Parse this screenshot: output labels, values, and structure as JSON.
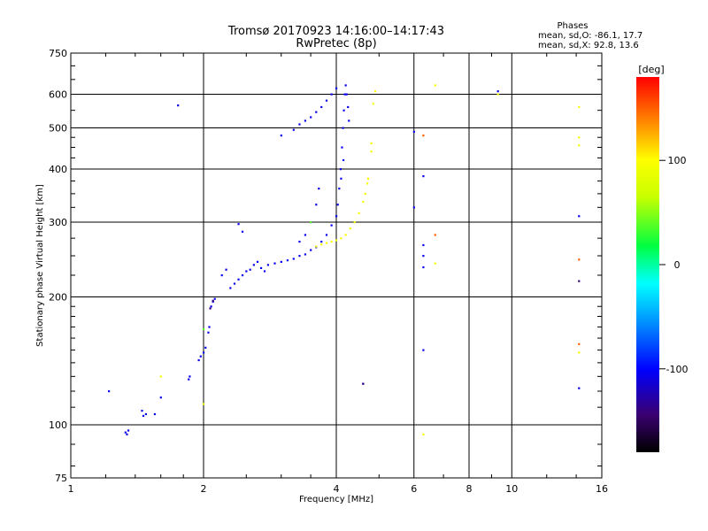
{
  "chart_data": {
    "type": "scatter",
    "title": "Tromsø 20170923 14:16:00–14:17:43",
    "subtitle": "RwPretec (8p)",
    "phase_info": {
      "title": "Phases",
      "line1": "mean, sd,O: -86.1, 17.7",
      "line2": "mean, sd,X:  92.8, 13.6"
    },
    "xlabel": "Frequency [MHz]",
    "ylabel": "Stationary phase Virtual Height [km]",
    "xscale": "log",
    "yscale": "log",
    "xlim": [
      1,
      16
    ],
    "ylim": [
      75,
      750
    ],
    "xticks": [
      1,
      2,
      4,
      6,
      8,
      10,
      16
    ],
    "xtick_labels": [
      "1",
      "2",
      "4",
      "6",
      "8",
      "10",
      "16"
    ],
    "yticks": [
      75,
      100,
      200,
      300,
      400,
      500,
      600,
      750
    ],
    "ytick_labels": [
      "75",
      "100",
      "200",
      "300",
      "400",
      "500",
      "600",
      "750"
    ],
    "grid": true,
    "colorbar": {
      "label": "[deg]",
      "range": [
        -180,
        180
      ],
      "ticks": [
        100,
        0,
        -100
      ],
      "tick_labels": [
        "100",
        "0",
        "-100"
      ]
    },
    "series": [
      {
        "mode": "O",
        "phase": -105,
        "points": [
          [
            1.22,
            120
          ],
          [
            1.33,
            96
          ],
          [
            1.34,
            95
          ],
          [
            1.35,
            97
          ],
          [
            1.45,
            108
          ],
          [
            1.46,
            105
          ],
          [
            1.48,
            106
          ],
          [
            1.55,
            106
          ],
          [
            1.6,
            116
          ],
          [
            1.85,
            128
          ],
          [
            1.86,
            130
          ],
          [
            1.95,
            142
          ],
          [
            1.97,
            145
          ],
          [
            2.0,
            148
          ],
          [
            2.02,
            152
          ],
          [
            2.05,
            165
          ],
          [
            2.06,
            170
          ],
          [
            2.08,
            190
          ],
          [
            2.1,
            195
          ],
          [
            2.12,
            198
          ],
          [
            2.2,
            225
          ],
          [
            2.25,
            232
          ],
          [
            2.3,
            210
          ],
          [
            2.35,
            215
          ],
          [
            2.4,
            220
          ],
          [
            2.45,
            225
          ],
          [
            2.5,
            230
          ],
          [
            2.55,
            232
          ],
          [
            2.6,
            238
          ],
          [
            2.65,
            242
          ],
          [
            2.7,
            234
          ],
          [
            2.75,
            230
          ],
          [
            2.8,
            238
          ],
          [
            2.9,
            240
          ],
          [
            3.0,
            242
          ],
          [
            3.1,
            244
          ],
          [
            3.2,
            246
          ],
          [
            3.3,
            250
          ],
          [
            3.4,
            252
          ],
          [
            3.5,
            258
          ],
          [
            3.6,
            262
          ],
          [
            3.7,
            270
          ],
          [
            3.8,
            280
          ],
          [
            3.9,
            295
          ],
          [
            4.0,
            310
          ],
          [
            4.03,
            330
          ],
          [
            4.06,
            360
          ],
          [
            4.09,
            400
          ],
          [
            4.12,
            450
          ],
          [
            4.14,
            500
          ],
          [
            4.16,
            550
          ],
          [
            4.18,
            600
          ],
          [
            4.2,
            630
          ],
          [
            4.22,
            600
          ],
          [
            4.25,
            560
          ],
          [
            4.27,
            520
          ],
          [
            4.1,
            380
          ],
          [
            4.15,
            420
          ],
          [
            3.3,
            270
          ],
          [
            3.4,
            280
          ],
          [
            3.5,
            300
          ],
          [
            3.6,
            330
          ],
          [
            3.65,
            360
          ],
          [
            3.0,
            480
          ],
          [
            3.2,
            495
          ],
          [
            3.3,
            510
          ],
          [
            3.4,
            520
          ],
          [
            3.5,
            530
          ],
          [
            3.6,
            545
          ],
          [
            3.7,
            560
          ],
          [
            3.8,
            580
          ],
          [
            3.9,
            600
          ],
          [
            4.0,
            620
          ],
          [
            1.75,
            565
          ],
          [
            2.4,
            297
          ],
          [
            2.45,
            285
          ],
          [
            4.6,
            125
          ],
          [
            6.0,
            325
          ],
          [
            6.0,
            490
          ],
          [
            6.3,
            385
          ],
          [
            6.3,
            265
          ],
          [
            6.3,
            250
          ],
          [
            6.3,
            235
          ],
          [
            6.3,
            150
          ],
          [
            9.3,
            610
          ],
          [
            14.2,
            310
          ],
          [
            14.2,
            122
          ]
        ]
      },
      {
        "mode": "X",
        "phase": 95,
        "points": [
          [
            3.6,
            263
          ],
          [
            3.7,
            266
          ],
          [
            3.8,
            268
          ],
          [
            3.9,
            270
          ],
          [
            4.0,
            272
          ],
          [
            4.1,
            275
          ],
          [
            4.2,
            280
          ],
          [
            4.3,
            290
          ],
          [
            4.4,
            300
          ],
          [
            4.5,
            315
          ],
          [
            4.6,
            335
          ],
          [
            4.65,
            350
          ],
          [
            4.7,
            370
          ],
          [
            4.72,
            380
          ],
          [
            4.8,
            440
          ],
          [
            4.8,
            460
          ],
          [
            4.85,
            570
          ],
          [
            4.9,
            610
          ],
          [
            1.6,
            130
          ],
          [
            2.0,
            112
          ],
          [
            6.3,
            95
          ],
          [
            6.7,
            630
          ],
          [
            6.7,
            240
          ],
          [
            9.3,
            600
          ],
          [
            14.2,
            560
          ],
          [
            14.2,
            455
          ],
          [
            14.2,
            475
          ],
          [
            14.2,
            148
          ]
        ]
      },
      {
        "mode": "other",
        "phase": 40,
        "points": [
          [
            2.0,
            168
          ],
          [
            3.5,
            300
          ]
        ]
      },
      {
        "mode": "other",
        "phase": 150,
        "points": [
          [
            6.3,
            480
          ],
          [
            6.7,
            280
          ],
          [
            14.2,
            245
          ],
          [
            14.2,
            155
          ]
        ]
      },
      {
        "mode": "other",
        "phase": -140,
        "points": [
          [
            2.07,
            188
          ],
          [
            2.1,
            196
          ],
          [
            4.6,
            125
          ],
          [
            14.2,
            218
          ]
        ]
      }
    ]
  }
}
